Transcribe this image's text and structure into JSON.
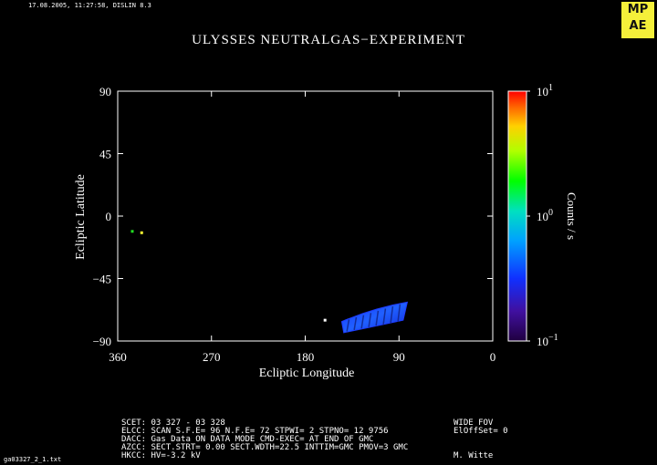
{
  "header": {
    "timestamp": "17.08.2005, 11:27:58, DISLIN 8.3",
    "title": "ULYSSES NEUTRALGAS−EXPERIMENT",
    "logo_text": [
      "MP",
      "AE"
    ]
  },
  "footer": {
    "lines": [
      "SCET: 03 327 - 03 328",
      "ELCC: SCAN  S.F.E= 96 N.F.E= 72 STPWI=  2  STPNO= 12   9756",
      "DACC: Gas Data ON   DATA MODE CMD-EXEC= AT END OF GMC",
      "AZCC: SECT.STRT=  0.00 SECT.WDTH=22.5 INTTIM=GMC PMOV=3 GMC",
      "HKCC: HV=-3.2 kV"
    ],
    "right_lines": [
      "WIDE FOV",
      "ElOffSet= 0",
      "",
      "",
      "M. Witte"
    ],
    "filename": "ga03327_2_1.txt"
  },
  "chart_data": {
    "type": "heatmap",
    "title": "ULYSSES NEUTRALGAS−EXPERIMENT",
    "xlabel": "Ecliptic Longitude",
    "ylabel": "Ecliptic Latitude",
    "xlim": [
      360,
      0
    ],
    "ylim": [
      -90,
      90
    ],
    "xticks": [
      "360",
      "270",
      "180",
      "90",
      "0"
    ],
    "xtick_values": [
      360,
      270,
      180,
      90,
      0
    ],
    "yticks": [
      "90",
      "45",
      "0",
      "−45",
      "−90"
    ],
    "ytick_values": [
      90,
      45,
      0,
      -45,
      -90
    ],
    "colorbar": {
      "label": "Counts / s",
      "scale": "log",
      "range": [
        0.1,
        10
      ],
      "ticks": [
        {
          "base": "10",
          "exp": "1",
          "value": 10
        },
        {
          "base": "10",
          "exp": "0",
          "value": 1
        },
        {
          "base": "10",
          "exp": "−1",
          "value": 0.1
        }
      ]
    },
    "points": [
      {
        "lon": 346,
        "lat": -11,
        "color": "#22dd22"
      },
      {
        "lon": 337,
        "lat": -12,
        "color": "#ffff33"
      },
      {
        "lon": 161,
        "lat": -75,
        "color": "#ffffff"
      }
    ],
    "scan_region": {
      "lon_range": [
        145,
        82
      ],
      "lat_top": [
        -76,
        -62
      ],
      "lat_bottom": [
        -84,
        -75
      ],
      "dominant_color": "#1e3cff"
    }
  }
}
